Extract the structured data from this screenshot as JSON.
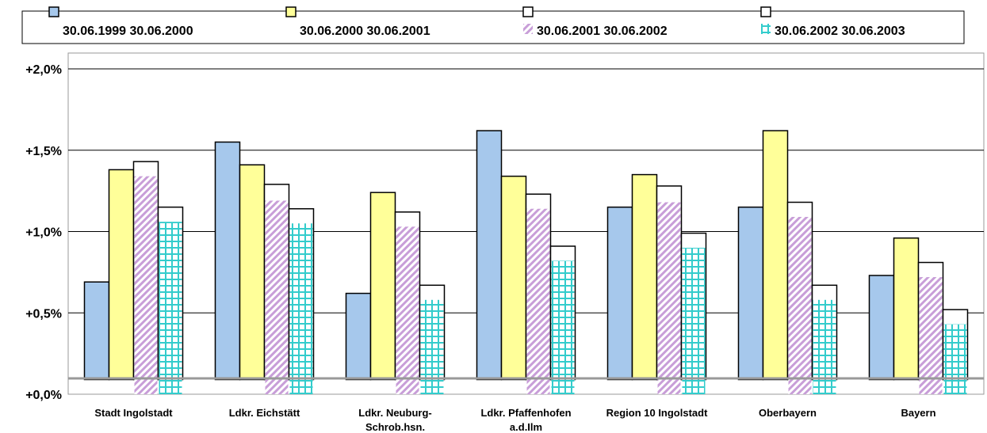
{
  "chart_data": {
    "type": "bar",
    "categories": [
      [
        "Stadt Ingolstadt"
      ],
      [
        "Ldkr. Eichstätt"
      ],
      [
        "Ldkr. Neuburg-",
        "Schrob.hsn."
      ],
      [
        "Ldkr. Pfaffenhofen",
        "a.d.Ilm"
      ],
      [
        "Region 10 Ingolstadt"
      ],
      [
        "Oberbayern"
      ],
      [
        "Bayern"
      ]
    ],
    "series": [
      {
        "name": "30.06.1999 30.06.2000",
        "fill": "#A6C8EC",
        "pattern": "solid",
        "values": [
          0.6,
          1.46,
          0.53,
          1.53,
          1.06,
          1.06,
          0.64
        ]
      },
      {
        "name": "30.06.2000 30.06.2001",
        "fill": "#FFFF99",
        "pattern": "solid",
        "values": [
          1.29,
          1.32,
          1.15,
          1.25,
          1.26,
          1.53,
          0.87
        ]
      },
      {
        "name": "30.06.2001 30.06.2002",
        "fill": "#C89ED8",
        "pattern": "diagonal",
        "outline_values": [
          1.34,
          1.2,
          1.03,
          1.14,
          1.19,
          1.09,
          0.72
        ],
        "values": [
          1.25,
          1.1,
          0.94,
          1.05,
          1.09,
          1.0,
          0.63
        ]
      },
      {
        "name": "30.06.2002 30.06.2003",
        "fill": "#33CCCC",
        "pattern": "grid",
        "outline_values": [
          1.06,
          1.05,
          0.58,
          0.82,
          0.9,
          0.58,
          0.43
        ],
        "values": [
          0.97,
          0.96,
          0.49,
          0.73,
          0.81,
          0.49,
          0.34
        ]
      }
    ],
    "ytick_labels": [
      "+0,0%",
      "+0,5%",
      "+1,0%",
      "+1,5%",
      "+2,0%"
    ],
    "yticks": [
      0,
      0.5,
      1.0,
      1.5,
      2.0
    ],
    "ylim": [
      0,
      2.0
    ],
    "baseline_offset": 0.09,
    "grid": true,
    "legend_position": "top"
  }
}
